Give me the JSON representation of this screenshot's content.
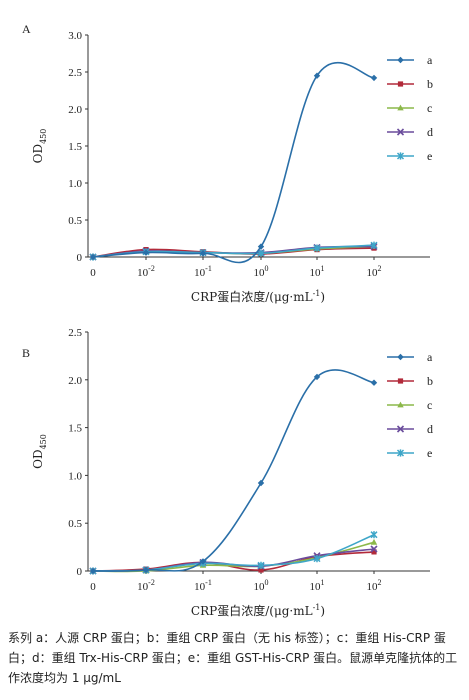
{
  "chart_data": [
    {
      "type": "line",
      "panel_label": "A",
      "xlabel": "CRP蛋白浓度/(μg·mL-1)",
      "xlabel_parts": {
        "main": "CRP蛋白浓度/(μg·mL",
        "sup": "-1",
        "close": ")"
      },
      "ylabel": "OD450",
      "ylabel_parts": {
        "main": "OD",
        "sub": "450"
      },
      "x_tick_labels": [
        {
          "base": "0",
          "exp": ""
        },
        {
          "base": "10",
          "exp": "-2"
        },
        {
          "base": "10",
          "exp": "-1"
        },
        {
          "base": "10",
          "exp": "0"
        },
        {
          "base": "10",
          "exp": "1"
        },
        {
          "base": "10",
          "exp": "2"
        }
      ],
      "x_values": [
        "0",
        "10^-2",
        "10^-1",
        "10^0",
        "10^1",
        "10^2"
      ],
      "y_ticks": [
        "0",
        "0.5",
        "1.0",
        "1.5",
        "2.0",
        "2.5",
        "3.0"
      ],
      "ylim": [
        0,
        3.0
      ],
      "series": [
        {
          "name": "a",
          "values": [
            0.0,
            0.06,
            0.05,
            0.14,
            2.45,
            2.42
          ]
        },
        {
          "name": "b",
          "values": [
            0.0,
            0.1,
            0.07,
            0.04,
            0.1,
            0.12
          ]
        },
        {
          "name": "c",
          "values": [
            0.0,
            0.07,
            0.06,
            0.05,
            0.11,
            0.14
          ]
        },
        {
          "name": "d",
          "values": [
            0.0,
            0.08,
            0.06,
            0.06,
            0.13,
            0.14
          ]
        },
        {
          "name": "e",
          "values": [
            0.0,
            0.07,
            0.06,
            0.05,
            0.12,
            0.16
          ]
        }
      ]
    },
    {
      "type": "line",
      "panel_label": "B",
      "xlabel": "CRP蛋白浓度/(μg·mL-1)",
      "xlabel_parts": {
        "main": "CRP蛋白浓度/(μg·mL",
        "sup": "-1",
        "close": ")"
      },
      "ylabel": "OD450",
      "ylabel_parts": {
        "main": "OD",
        "sub": "450"
      },
      "x_tick_labels": [
        {
          "base": "0",
          "exp": ""
        },
        {
          "base": "10",
          "exp": "-2"
        },
        {
          "base": "10",
          "exp": "-1"
        },
        {
          "base": "10",
          "exp": "0"
        },
        {
          "base": "10",
          "exp": "1"
        },
        {
          "base": "10",
          "exp": "2"
        }
      ],
      "x_values": [
        "0",
        "10^-2",
        "10^-1",
        "10^0",
        "10^1",
        "10^2"
      ],
      "y_ticks": [
        "0",
        "0.5",
        "1.0",
        "1.5",
        "2.0",
        "2.5"
      ],
      "ylim": [
        0,
        2.5
      ],
      "series": [
        {
          "name": "a",
          "values": [
            0.0,
            0.01,
            0.1,
            0.92,
            2.03,
            1.97
          ]
        },
        {
          "name": "b",
          "values": [
            0.0,
            0.02,
            0.09,
            0.01,
            0.15,
            0.2
          ]
        },
        {
          "name": "c",
          "values": [
            0.0,
            0.0,
            0.06,
            0.05,
            0.14,
            0.3
          ]
        },
        {
          "name": "d",
          "values": [
            0.0,
            0.01,
            0.09,
            0.05,
            0.16,
            0.23
          ]
        },
        {
          "name": "e",
          "values": [
            0.0,
            0.01,
            0.08,
            0.06,
            0.13,
            0.38
          ]
        }
      ]
    }
  ],
  "legend_placement": "right",
  "colors": {
    "a": "#2a6fa8",
    "b": "#b22a3a",
    "c": "#8cb84a",
    "d": "#6a4c9c",
    "e": "#3ea6c8"
  },
  "markers": {
    "a": "diamond",
    "b": "square",
    "c": "triangle",
    "d": "x",
    "e": "asterisk"
  },
  "caption": "系列 a：人源 CRP 蛋白；b：重组 CRP 蛋白（无 his 标签）；c：重组 His-CRP 蛋白；d：重组 Trx-His-CRP 蛋白；e：重组 GST-His-CRP 蛋白。鼠源单克隆抗体的工作浓度均为 1 μg/mL"
}
